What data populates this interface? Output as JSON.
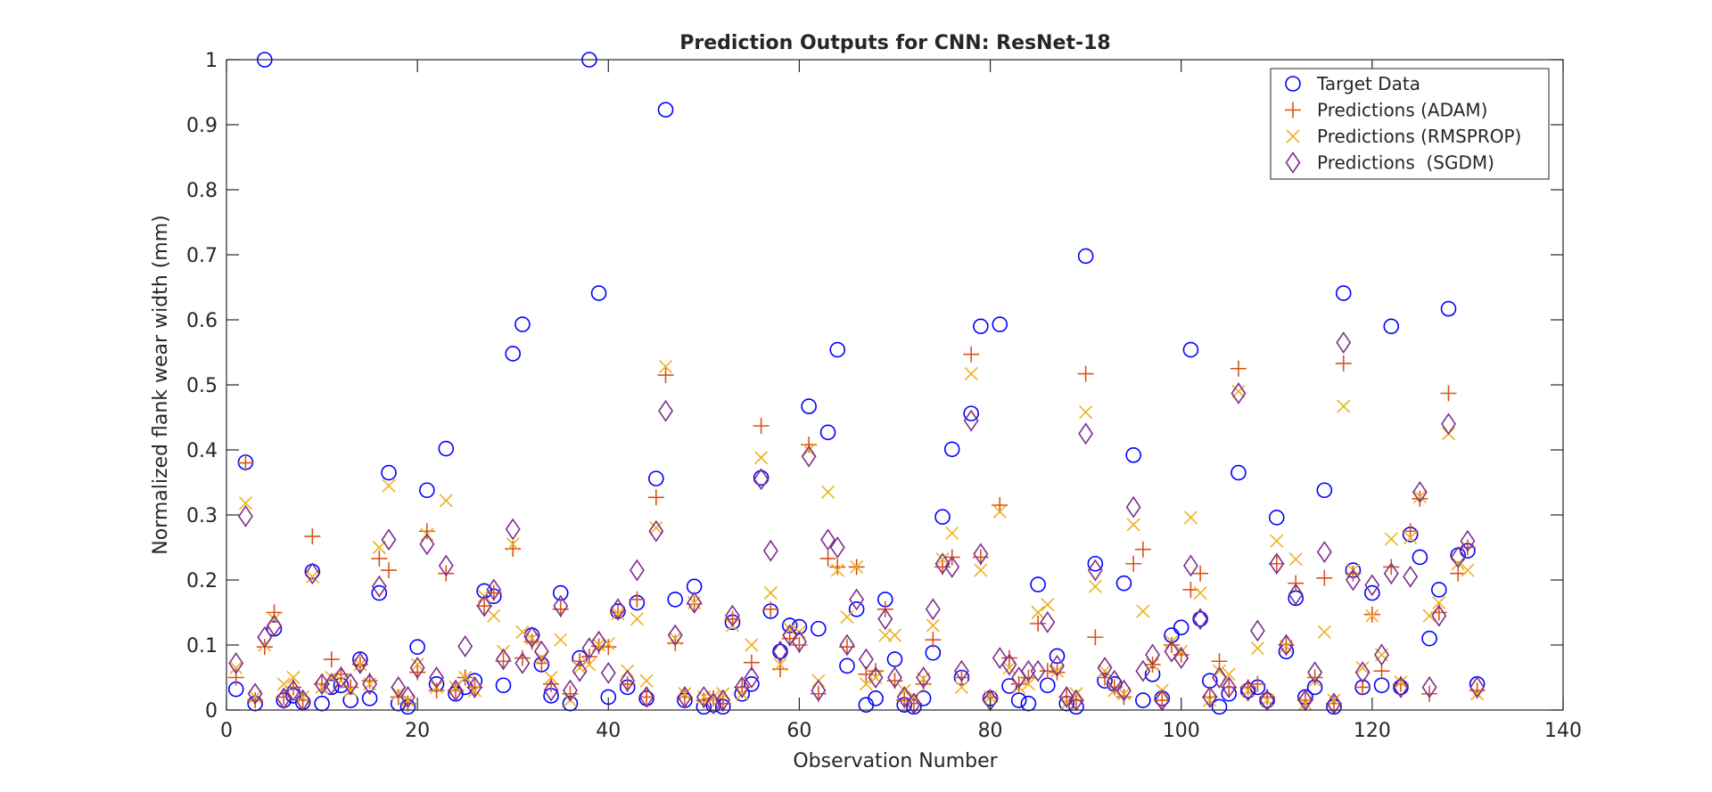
{
  "chart_data": {
    "type": "scatter",
    "title": "Prediction Outputs for CNN: ResNet-18",
    "xlabel": "Observation Number",
    "ylabel": "Normalized flank wear width (mm)",
    "xlim": [
      0,
      140
    ],
    "ylim": [
      0,
      1
    ],
    "xticks": [
      "0",
      "20",
      "40",
      "60",
      "80",
      "100",
      "120",
      "140"
    ],
    "yticks": [
      "0",
      "0.1",
      "0.2",
      "0.3",
      "0.4",
      "0.5",
      "0.6",
      "0.7",
      "0.8",
      "0.9",
      "1"
    ],
    "grid": false,
    "legend_position": "top-right",
    "series": [
      {
        "name": "Target Data",
        "marker": "circle",
        "color": "#0000ff",
        "x": [
          1,
          2,
          3,
          4,
          5,
          6,
          7,
          8,
          9,
          10,
          11,
          12,
          13,
          14,
          15,
          16,
          17,
          18,
          19,
          20,
          21,
          22,
          23,
          24,
          25,
          26,
          27,
          28,
          29,
          30,
          31,
          32,
          33,
          34,
          35,
          36,
          37,
          38,
          39,
          40,
          41,
          42,
          43,
          44,
          45,
          46,
          47,
          48,
          49,
          50,
          51,
          52,
          53,
          54,
          55,
          56,
          57,
          58,
          59,
          60,
          61,
          62,
          63,
          64,
          65,
          66,
          67,
          68,
          69,
          70,
          71,
          72,
          73,
          74,
          75,
          76,
          77,
          78,
          79,
          80,
          81,
          82,
          83,
          84,
          85,
          86,
          87,
          88,
          89,
          90,
          91,
          92,
          93,
          94,
          95,
          96,
          97,
          98,
          99,
          100,
          101,
          102,
          103,
          104,
          105,
          106,
          107,
          108,
          109,
          110,
          111,
          112,
          113,
          114,
          115,
          116,
          117,
          118,
          119,
          120,
          121,
          122,
          123,
          124,
          125,
          126,
          127,
          128,
          129,
          130,
          131
        ],
        "y": [
          0.032,
          0.381,
          0.01,
          1.0,
          0.125,
          0.015,
          0.022,
          0.012,
          0.213,
          0.01,
          0.035,
          0.038,
          0.015,
          0.078,
          0.018,
          0.18,
          0.365,
          0.01,
          0.005,
          0.097,
          0.338,
          0.04,
          0.402,
          0.025,
          0.035,
          0.045,
          0.183,
          0.175,
          0.038,
          0.548,
          0.593,
          0.115,
          0.07,
          0.022,
          0.18,
          0.01,
          0.08,
          1.0,
          0.641,
          0.02,
          0.152,
          0.035,
          0.165,
          0.018,
          0.356,
          0.923,
          0.17,
          0.015,
          0.19,
          0.005,
          0.008,
          0.005,
          0.135,
          0.025,
          0.04,
          0.357,
          0.152,
          0.09,
          0.13,
          0.128,
          0.467,
          0.125,
          0.427,
          0.554,
          0.068,
          0.155,
          0.008,
          0.018,
          0.17,
          0.078,
          0.008,
          0.005,
          0.018,
          0.088,
          0.297,
          0.401,
          0.05,
          0.456,
          0.59,
          0.018,
          0.593,
          0.037,
          0.015,
          0.01,
          0.193,
          0.038,
          0.083,
          0.01,
          0.005,
          0.698,
          0.225,
          0.045,
          0.04,
          0.195,
          0.392,
          0.015,
          0.055,
          0.018,
          0.115,
          0.127,
          0.554,
          0.14,
          0.045,
          0.005,
          0.025,
          0.365,
          0.03,
          0.035,
          0.015,
          0.296,
          0.09,
          0.172,
          0.02,
          0.035,
          0.338,
          0.005,
          0.641,
          0.215,
          0.035,
          0.18,
          0.038,
          0.59,
          0.035,
          0.27,
          0.235,
          0.11,
          0.185,
          0.617,
          0.238,
          0.245,
          0.04
        ]
      },
      {
        "name": "Predictions (ADAM)",
        "marker": "plus",
        "color": "#d95319",
        "x": [
          1,
          2,
          3,
          4,
          5,
          6,
          7,
          8,
          9,
          10,
          11,
          12,
          13,
          14,
          15,
          16,
          17,
          18,
          19,
          20,
          21,
          22,
          23,
          24,
          25,
          26,
          27,
          28,
          29,
          30,
          31,
          32,
          33,
          34,
          35,
          36,
          37,
          38,
          39,
          40,
          41,
          42,
          43,
          44,
          45,
          46,
          47,
          48,
          49,
          50,
          51,
          52,
          53,
          54,
          55,
          56,
          57,
          58,
          59,
          60,
          61,
          62,
          63,
          64,
          65,
          66,
          67,
          68,
          69,
          70,
          71,
          72,
          73,
          74,
          75,
          76,
          77,
          78,
          79,
          80,
          81,
          82,
          83,
          84,
          85,
          86,
          87,
          88,
          89,
          90,
          91,
          92,
          93,
          94,
          95,
          96,
          97,
          98,
          99,
          100,
          101,
          102,
          103,
          104,
          105,
          106,
          107,
          108,
          109,
          110,
          111,
          112,
          113,
          114,
          115,
          116,
          117,
          118,
          119,
          120,
          121,
          122,
          123,
          124,
          125,
          126,
          127,
          128,
          129,
          130,
          131
        ],
        "y": [
          0.05,
          0.38,
          0.015,
          0.097,
          0.15,
          0.02,
          0.035,
          0.015,
          0.267,
          0.04,
          0.078,
          0.055,
          0.035,
          0.07,
          0.045,
          0.233,
          0.215,
          0.02,
          0.01,
          0.058,
          0.275,
          0.03,
          0.21,
          0.03,
          0.05,
          0.035,
          0.16,
          0.18,
          0.075,
          0.248,
          0.08,
          0.105,
          0.072,
          0.04,
          0.155,
          0.025,
          0.075,
          0.082,
          0.098,
          0.097,
          0.15,
          0.04,
          0.17,
          0.02,
          0.327,
          0.515,
          0.103,
          0.02,
          0.163,
          0.015,
          0.018,
          0.01,
          0.14,
          0.035,
          0.073,
          0.437,
          0.155,
          0.063,
          0.11,
          0.1,
          0.408,
          0.025,
          0.233,
          0.22,
          0.097,
          0.22,
          0.055,
          0.06,
          0.155,
          0.045,
          0.015,
          0.01,
          0.04,
          0.108,
          0.22,
          0.235,
          0.05,
          0.547,
          0.235,
          0.02,
          0.315,
          0.08,
          0.04,
          0.05,
          0.133,
          0.06,
          0.058,
          0.02,
          0.015,
          0.517,
          0.112,
          0.05,
          0.035,
          0.02,
          0.225,
          0.247,
          0.07,
          0.015,
          0.1,
          0.085,
          0.185,
          0.21,
          0.02,
          0.075,
          0.035,
          0.525,
          0.035,
          0.04,
          0.02,
          0.225,
          0.1,
          0.195,
          0.015,
          0.05,
          0.203,
          0.01,
          0.533,
          0.21,
          0.035,
          0.147,
          0.06,
          0.22,
          0.04,
          0.275,
          0.325,
          0.025,
          0.15,
          0.487,
          0.21,
          0.25,
          0.03
        ]
      },
      {
        "name": "Predictions (RMSPROP)",
        "marker": "x",
        "color": "#edb120",
        "x": [
          1,
          2,
          3,
          4,
          5,
          6,
          7,
          8,
          9,
          10,
          11,
          12,
          13,
          14,
          15,
          16,
          17,
          18,
          19,
          20,
          21,
          22,
          23,
          24,
          25,
          26,
          27,
          28,
          29,
          30,
          31,
          32,
          33,
          34,
          35,
          36,
          37,
          38,
          39,
          40,
          41,
          42,
          43,
          44,
          45,
          46,
          47,
          48,
          49,
          50,
          51,
          52,
          53,
          54,
          55,
          56,
          57,
          58,
          59,
          60,
          61,
          62,
          63,
          64,
          65,
          66,
          67,
          68,
          69,
          70,
          71,
          72,
          73,
          74,
          75,
          76,
          77,
          78,
          79,
          80,
          81,
          82,
          83,
          84,
          85,
          86,
          87,
          88,
          89,
          90,
          91,
          92,
          93,
          94,
          95,
          96,
          97,
          98,
          99,
          100,
          101,
          102,
          103,
          104,
          105,
          106,
          107,
          108,
          109,
          110,
          111,
          112,
          113,
          114,
          115,
          116,
          117,
          118,
          119,
          120,
          121,
          122,
          123,
          124,
          125,
          126,
          127,
          128,
          129,
          130,
          131
        ],
        "y": [
          0.065,
          0.318,
          0.02,
          0.1,
          0.14,
          0.04,
          0.05,
          0.02,
          0.205,
          0.035,
          0.05,
          0.045,
          0.03,
          0.07,
          0.04,
          0.25,
          0.345,
          0.025,
          0.015,
          0.07,
          0.27,
          0.035,
          0.322,
          0.035,
          0.05,
          0.03,
          0.175,
          0.145,
          0.09,
          0.255,
          0.12,
          0.11,
          0.08,
          0.05,
          0.108,
          0.015,
          0.065,
          0.07,
          0.1,
          0.102,
          0.148,
          0.06,
          0.14,
          0.045,
          0.28,
          0.528,
          0.11,
          0.025,
          0.165,
          0.02,
          0.02,
          0.025,
          0.13,
          0.025,
          0.1,
          0.388,
          0.18,
          0.07,
          0.125,
          0.12,
          0.4,
          0.045,
          0.335,
          0.215,
          0.143,
          0.22,
          0.04,
          0.05,
          0.115,
          0.115,
          0.03,
          0.02,
          0.048,
          0.13,
          0.232,
          0.272,
          0.035,
          0.517,
          0.215,
          0.02,
          0.305,
          0.065,
          0.035,
          0.04,
          0.15,
          0.162,
          0.06,
          0.01,
          0.025,
          0.458,
          0.19,
          0.06,
          0.03,
          0.025,
          0.285,
          0.152,
          0.07,
          0.03,
          0.105,
          0.09,
          0.296,
          0.18,
          0.015,
          0.06,
          0.055,
          0.49,
          0.03,
          0.095,
          0.015,
          0.26,
          0.098,
          0.232,
          0.01,
          0.045,
          0.12,
          0.015,
          0.467,
          0.215,
          0.065,
          0.145,
          0.085,
          0.263,
          0.043,
          0.265,
          0.328,
          0.145,
          0.165,
          0.425,
          0.225,
          0.215,
          0.025
        ]
      },
      {
        "name": "Predictions  (SGDM)",
        "marker": "diamond",
        "color": "#7e2f8e",
        "x": [
          1,
          2,
          3,
          4,
          5,
          6,
          7,
          8,
          9,
          10,
          11,
          12,
          13,
          14,
          15,
          16,
          17,
          18,
          19,
          20,
          21,
          22,
          23,
          24,
          25,
          26,
          27,
          28,
          29,
          30,
          31,
          32,
          33,
          34,
          35,
          36,
          37,
          38,
          39,
          40,
          41,
          42,
          43,
          44,
          45,
          46,
          47,
          48,
          49,
          50,
          51,
          52,
          53,
          54,
          55,
          56,
          57,
          58,
          59,
          60,
          61,
          62,
          63,
          64,
          65,
          66,
          67,
          68,
          69,
          70,
          71,
          72,
          73,
          74,
          75,
          76,
          77,
          78,
          79,
          80,
          81,
          82,
          83,
          84,
          85,
          86,
          87,
          88,
          89,
          90,
          91,
          92,
          93,
          94,
          95,
          96,
          97,
          98,
          99,
          100,
          101,
          102,
          103,
          104,
          105,
          106,
          107,
          108,
          109,
          110,
          111,
          112,
          113,
          114,
          115,
          116,
          117,
          118,
          119,
          120,
          121,
          122,
          123,
          124,
          125,
          126,
          127,
          128,
          129,
          130,
          131
        ],
        "y": [
          0.072,
          0.298,
          0.025,
          0.112,
          0.13,
          0.018,
          0.03,
          0.015,
          0.21,
          0.04,
          0.04,
          0.05,
          0.04,
          0.072,
          0.04,
          0.19,
          0.262,
          0.035,
          0.02,
          0.065,
          0.255,
          0.05,
          0.222,
          0.03,
          0.098,
          0.035,
          0.16,
          0.185,
          0.078,
          0.278,
          0.072,
          0.112,
          0.09,
          0.03,
          0.16,
          0.03,
          0.06,
          0.095,
          0.105,
          0.057,
          0.155,
          0.045,
          0.215,
          0.02,
          0.275,
          0.46,
          0.115,
          0.02,
          0.165,
          0.02,
          0.01,
          0.015,
          0.145,
          0.035,
          0.05,
          0.355,
          0.245,
          0.09,
          0.115,
          0.105,
          0.39,
          0.03,
          0.262,
          0.25,
          0.1,
          0.17,
          0.078,
          0.05,
          0.14,
          0.05,
          0.02,
          0.01,
          0.05,
          0.155,
          0.225,
          0.22,
          0.06,
          0.445,
          0.24,
          0.015,
          0.08,
          0.07,
          0.05,
          0.06,
          0.06,
          0.135,
          0.068,
          0.02,
          0.015,
          0.425,
          0.215,
          0.065,
          0.045,
          0.03,
          0.312,
          0.06,
          0.085,
          0.015,
          0.09,
          0.08,
          0.222,
          0.14,
          0.02,
          0.05,
          0.035,
          0.487,
          0.03,
          0.122,
          0.015,
          0.225,
          0.1,
          0.178,
          0.015,
          0.058,
          0.243,
          0.01,
          0.565,
          0.2,
          0.058,
          0.192,
          0.085,
          0.21,
          0.035,
          0.205,
          0.335,
          0.035,
          0.145,
          0.44,
          0.235,
          0.26,
          0.035
        ]
      }
    ]
  }
}
